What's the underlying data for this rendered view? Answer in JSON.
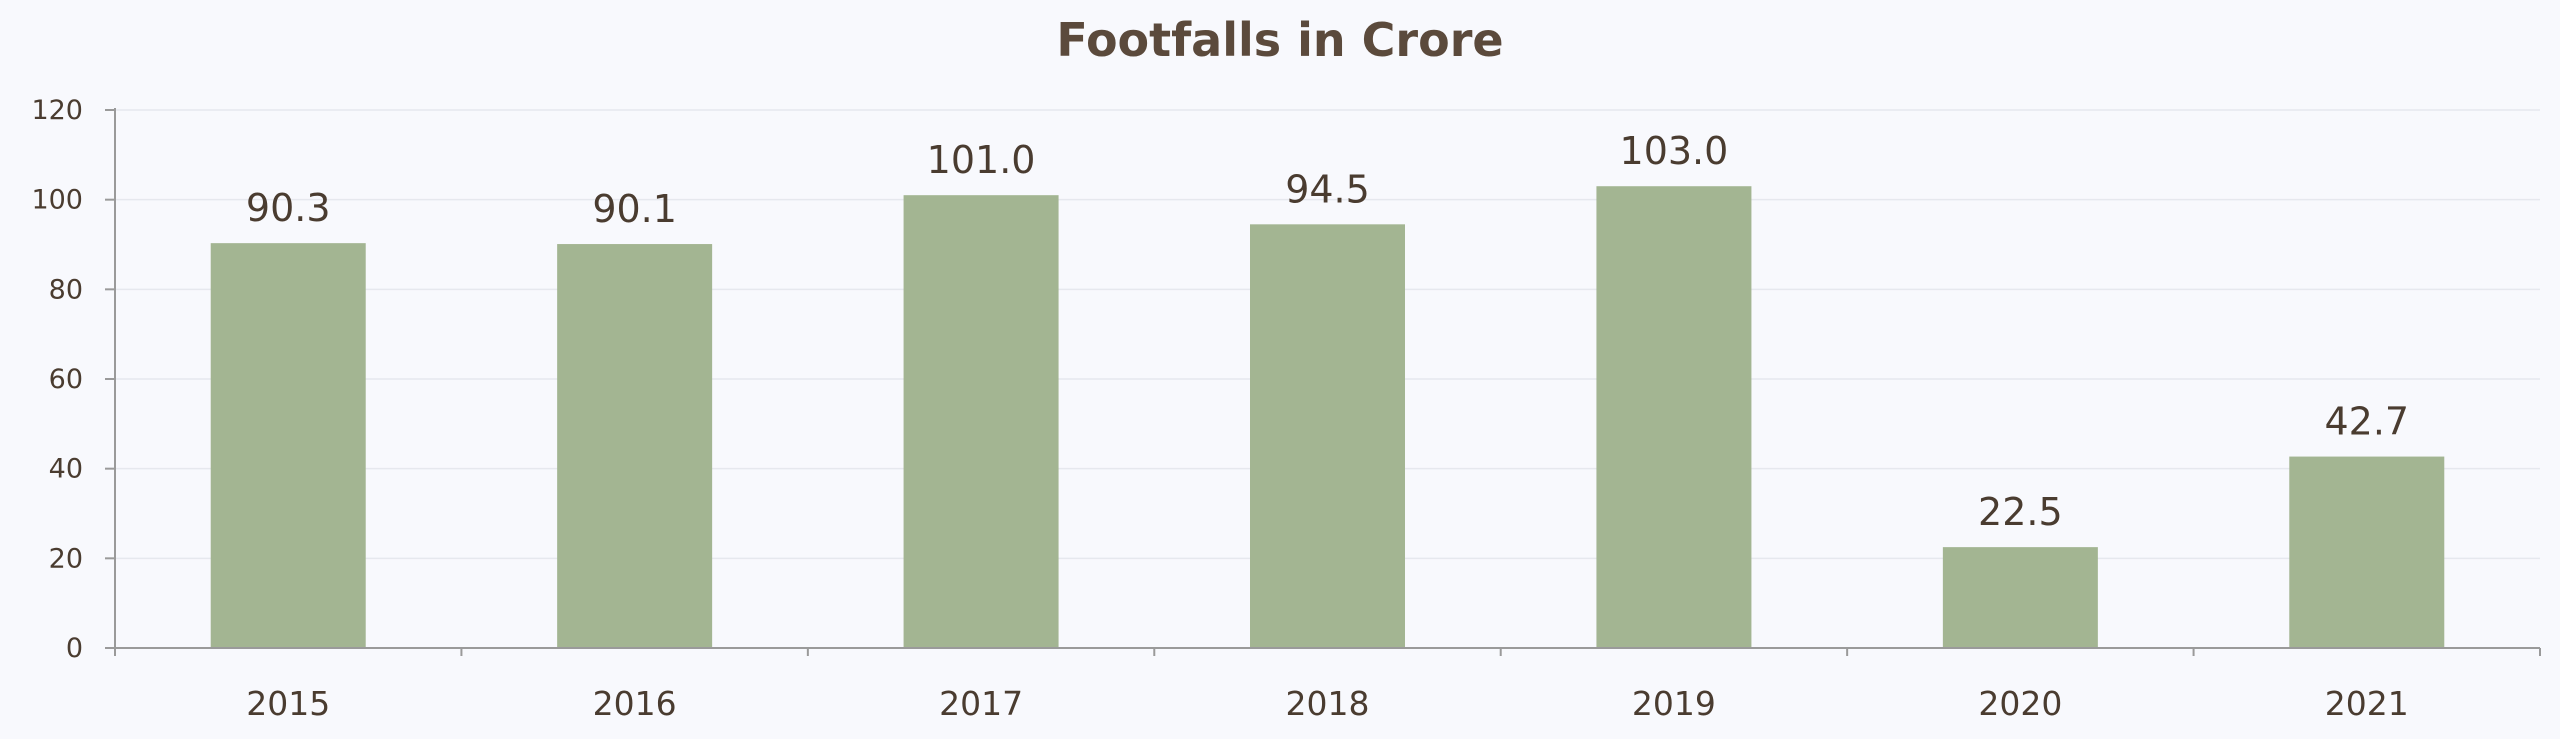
{
  "chart_data": {
    "type": "bar",
    "title": "Footfalls in Crore",
    "categories": [
      "2015",
      "2016",
      "2017",
      "2018",
      "2019",
      "2020",
      "2021"
    ],
    "values": [
      90.3,
      90.1,
      101.0,
      94.5,
      103.0,
      22.5,
      42.7
    ],
    "data_labels": [
      "90.3",
      "90.1",
      "101.0",
      "94.5",
      "103.0",
      "22.5",
      "42.7"
    ],
    "ylim": [
      0,
      120
    ],
    "yticks": [
      0,
      20,
      40,
      60,
      80,
      100,
      120
    ],
    "grid": true,
    "legend": "none",
    "xlabel": "",
    "ylabel": "",
    "colors": {
      "bar": "#a3b592",
      "text": "#4a3c30",
      "title": "#5b4a3c",
      "background": "#f8f9fd"
    }
  }
}
